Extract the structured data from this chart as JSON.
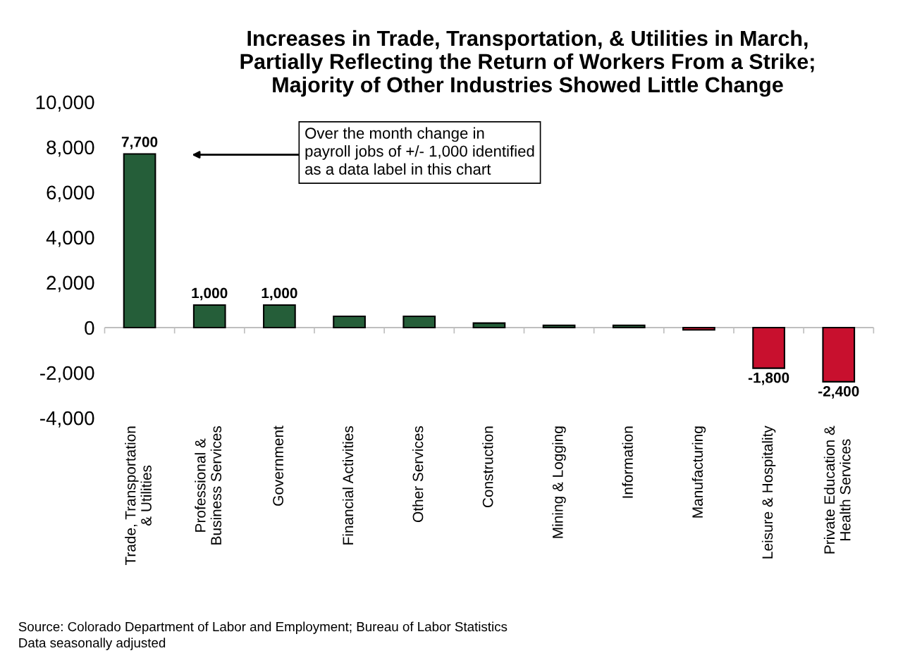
{
  "chart_data": {
    "type": "bar",
    "title": "Increases in Trade, Transportation, & Utilities in March,\nPartially Reflecting the Return of Workers From a Strike;\nMajority of Other Industries Showed Little Change",
    "categories": [
      "Trade, Transportation\n& Utilities",
      "Professional &\nBusiness Services",
      "Government",
      "Financial Activities",
      "Other Services",
      "Construction",
      "Mining & Logging",
      "Information",
      "Manufacturing",
      "Leisure & Hospitality",
      "Private Education &\nHealth Services"
    ],
    "values": [
      7700,
      1000,
      1000,
      500,
      500,
      200,
      100,
      100,
      -100,
      -1800,
      -2400
    ],
    "colors": [
      "#255e39",
      "#255e39",
      "#255e39",
      "#255e39",
      "#255e39",
      "#255e39",
      "#255e39",
      "#255e39",
      "#c8102e",
      "#c8102e",
      "#c8102e"
    ],
    "value_labels": [
      "7,700",
      "1,000",
      "1,000",
      null,
      null,
      null,
      null,
      null,
      null,
      "-1,800",
      "-2,400"
    ],
    "ylim": [
      -4000,
      10000
    ],
    "yticks": [
      {
        "value": -4000,
        "label": "-4,000"
      },
      {
        "value": -2000,
        "label": "-2,000"
      },
      {
        "value": 0,
        "label": "0"
      },
      {
        "value": 2000,
        "label": "2,000"
      },
      {
        "value": 4000,
        "label": "4,000"
      },
      {
        "value": 6000,
        "label": "6,000"
      },
      {
        "value": 8000,
        "label": "8,000"
      },
      {
        "value": 10000,
        "label": "10,000"
      }
    ],
    "grid": false,
    "ref_lines": [
      {
        "axis": "y",
        "value": 0,
        "color": "#bfbfbf"
      }
    ],
    "annotations": [
      "Over the month change in\npayroll jobs of +/- 1,000 identified\nas a data label in this chart",
      "Source: Colorado Department of Labor and Employment; Bureau of Labor Statistics\nData seasonally adjusted"
    ]
  }
}
